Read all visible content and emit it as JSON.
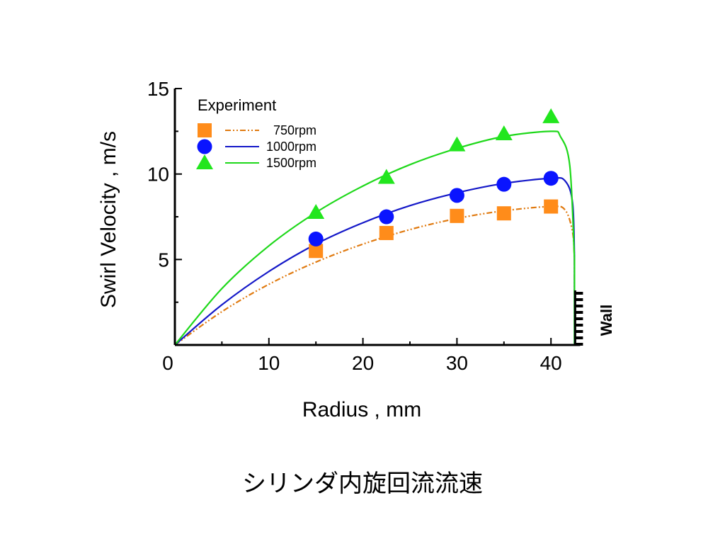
{
  "caption": "シリンダ内旋回流流速",
  "chart_data": {
    "type": "scatter",
    "xlabel": "Radius , mm",
    "ylabel": "Swirl Velocity , m/s",
    "xlim": [
      0,
      42.5
    ],
    "ylim": [
      0,
      15
    ],
    "x_ticks": [
      "0",
      "10",
      "20",
      "30",
      "40"
    ],
    "y_ticks": [
      "5",
      "10",
      "15"
    ],
    "legend_title": "Experiment",
    "legend_position": "top-left",
    "wall_label": "Wall",
    "wall_x": 42.5,
    "series": [
      {
        "name": "750rpm",
        "marker": "square",
        "color": "#ff8c1a",
        "line_color": "#e07a10",
        "line_style": "dash-dot-dot",
        "points": [
          [
            15,
            5.5
          ],
          [
            22.5,
            6.55
          ],
          [
            30,
            7.55
          ],
          [
            35,
            7.7
          ],
          [
            40,
            8.1
          ]
        ],
        "curve": [
          [
            0,
            0
          ],
          [
            5,
            1.95
          ],
          [
            10,
            3.55
          ],
          [
            15,
            4.85
          ],
          [
            20,
            5.9
          ],
          [
            25,
            6.75
          ],
          [
            30,
            7.4
          ],
          [
            35,
            7.85
          ],
          [
            40,
            8.1
          ],
          [
            41.5,
            7.9
          ],
          [
            42.3,
            6.6
          ],
          [
            42.5,
            5.0
          ]
        ]
      },
      {
        "name": "1000rpm",
        "marker": "circle",
        "color": "#0a14ff",
        "line_color": "#1418c8",
        "line_style": "solid",
        "points": [
          [
            15,
            6.2
          ],
          [
            22.5,
            7.5
          ],
          [
            30,
            8.75
          ],
          [
            35,
            9.4
          ],
          [
            40,
            9.75
          ]
        ],
        "curve": [
          [
            0,
            0
          ],
          [
            5,
            2.35
          ],
          [
            10,
            4.3
          ],
          [
            15,
            5.9
          ],
          [
            20,
            7.15
          ],
          [
            25,
            8.15
          ],
          [
            30,
            8.9
          ],
          [
            35,
            9.45
          ],
          [
            40,
            9.75
          ],
          [
            41.5,
            9.6
          ],
          [
            42.3,
            8.3
          ],
          [
            42.5,
            5.0
          ]
        ]
      },
      {
        "name": "1500rpm",
        "marker": "triangle",
        "color": "#22e61e",
        "line_color": "#1ed81a",
        "line_style": "solid",
        "points": [
          [
            15,
            7.75
          ],
          [
            22.5,
            9.8
          ],
          [
            30,
            11.7
          ],
          [
            35,
            12.35
          ],
          [
            40,
            13.35
          ]
        ],
        "curve": [
          [
            0,
            0
          ],
          [
            5,
            3.3
          ],
          [
            10,
            5.8
          ],
          [
            15,
            7.75
          ],
          [
            20,
            9.3
          ],
          [
            25,
            10.55
          ],
          [
            30,
            11.5
          ],
          [
            35,
            12.2
          ],
          [
            40,
            12.5
          ],
          [
            41.0,
            12.2
          ],
          [
            42.0,
            10.5
          ],
          [
            42.5,
            5.0
          ]
        ]
      }
    ]
  }
}
